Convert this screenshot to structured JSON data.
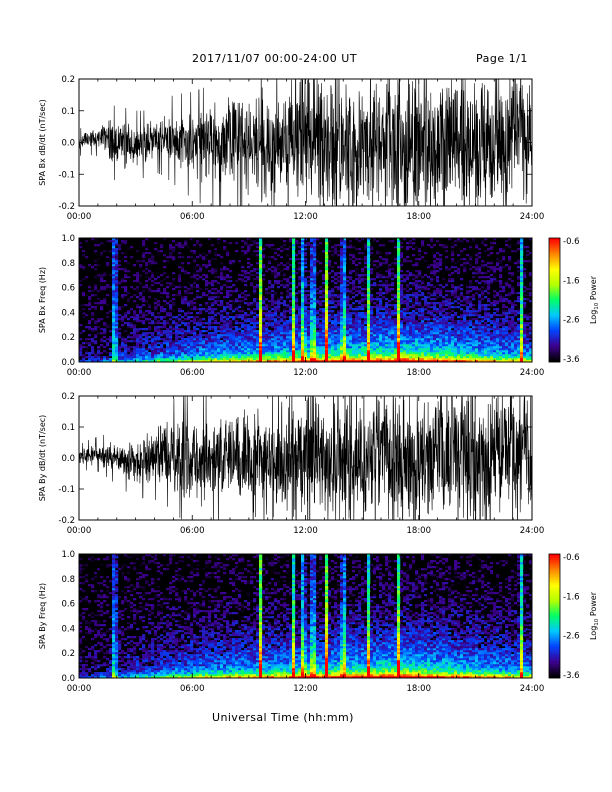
{
  "header": {
    "date_range": "2017/11/07  00:00-24:00 UT",
    "page": "Page 1/1"
  },
  "xaxis_title": "Universal Time (hh:mm)",
  "colors": {
    "trace": "#000000",
    "background_spectrogram": "#000000",
    "colormap": [
      "#000000",
      "#3d0090",
      "#0044ff",
      "#00c8ff",
      "#00ff66",
      "#b4ff00",
      "#ffff00",
      "#ff8800",
      "#ff0000"
    ]
  },
  "colorbar": {
    "title": "Log10 Power",
    "title_main": "Log",
    "title_sub": "10",
    "title_tail": " Power",
    "ticks": [
      "-0.6",
      "-1.6",
      "-2.6",
      "-3.6"
    ]
  },
  "chart_data": [
    {
      "id": "bx-dbdt",
      "type": "line",
      "ylabel": "SPA Bx dB/dt (nT/sec)",
      "xlim": [
        "00:00",
        "24:00"
      ],
      "ylim": [
        -0.2,
        0.2
      ],
      "xticks": [
        "00:00",
        "06:00",
        "12:00",
        "18:00",
        "24:00"
      ],
      "yticks": [
        "0.2",
        "0.1",
        "0.0",
        "-0.1",
        "-0.2"
      ],
      "envelope_hours": [
        0,
        1,
        2,
        3,
        4,
        5,
        6,
        7,
        8,
        9,
        10,
        11,
        12,
        13,
        14,
        15,
        16,
        17,
        18,
        19,
        20,
        21,
        22,
        23,
        24
      ],
      "envelope_amplitude": [
        0.03,
        0.04,
        0.09,
        0.08,
        0.07,
        0.1,
        0.12,
        0.14,
        0.16,
        0.19,
        0.2,
        0.22,
        0.25,
        0.25,
        0.25,
        0.25,
        0.25,
        0.25,
        0.25,
        0.25,
        0.25,
        0.25,
        0.25,
        0.25,
        0.25
      ]
    },
    {
      "id": "bx-freq",
      "type": "heatmap",
      "ylabel": "SPA Bx Freq (Hz)",
      "xlim": [
        "00:00",
        "24:00"
      ],
      "ylim": [
        0.0,
        1.0
      ],
      "clim": [
        -3.6,
        -0.6
      ],
      "xticks": [
        "00:00",
        "06:00",
        "12:00",
        "18:00",
        "24:00"
      ],
      "yticks": [
        "1.0",
        "0.8",
        "0.6",
        "0.4",
        "0.2",
        "0.0"
      ],
      "bright_spike_hours": [
        1.9,
        9.6,
        11.4,
        11.9,
        12.4,
        13.1,
        14.0,
        15.3,
        16.9,
        23.4
      ]
    },
    {
      "id": "by-dbdt",
      "type": "line",
      "ylabel": "SPA By dB/dt (nT/sec)",
      "xlim": [
        "00:00",
        "24:00"
      ],
      "ylim": [
        -0.2,
        0.2
      ],
      "xticks": [
        "00:00",
        "06:00",
        "12:00",
        "18:00",
        "24:00"
      ],
      "yticks": [
        "0.2",
        "0.1",
        "0.0",
        "-0.1",
        "-0.2"
      ],
      "envelope_hours": [
        0,
        1,
        2,
        3,
        4,
        5,
        6,
        7,
        8,
        9,
        10,
        11,
        12,
        13,
        14,
        15,
        16,
        17,
        18,
        19,
        20,
        21,
        22,
        23,
        24
      ],
      "envelope_amplitude": [
        0.03,
        0.04,
        0.06,
        0.08,
        0.1,
        0.13,
        0.16,
        0.17,
        0.18,
        0.19,
        0.2,
        0.22,
        0.25,
        0.25,
        0.25,
        0.25,
        0.25,
        0.25,
        0.25,
        0.25,
        0.25,
        0.25,
        0.25,
        0.25,
        0.25
      ]
    },
    {
      "id": "by-freq",
      "type": "heatmap",
      "ylabel": "SPA By Freq (Hz)",
      "xlim": [
        "00:00",
        "24:00"
      ],
      "ylim": [
        0.0,
        1.0
      ],
      "clim": [
        -3.6,
        -0.6
      ],
      "xticks": [
        "00:00",
        "06:00",
        "12:00",
        "18:00",
        "24:00"
      ],
      "yticks": [
        "1.0",
        "0.8",
        "0.6",
        "0.4",
        "0.2",
        "0.0"
      ],
      "bright_spike_hours": [
        1.9,
        9.6,
        11.4,
        11.9,
        12.4,
        13.1,
        14.0,
        15.3,
        16.9,
        23.4
      ]
    }
  ]
}
